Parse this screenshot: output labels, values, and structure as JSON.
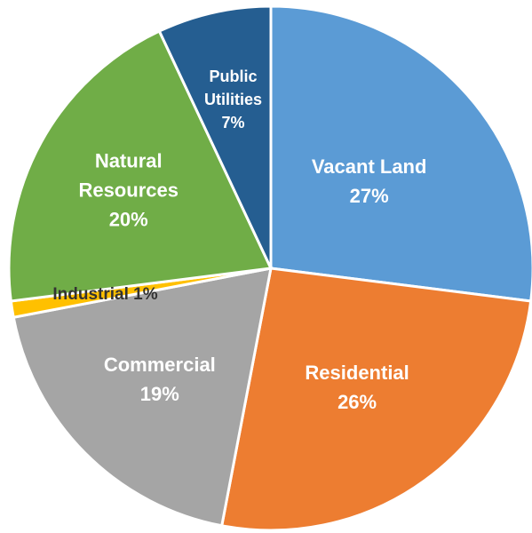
{
  "chart_data": {
    "type": "pie",
    "categories": [
      "Vacant Land",
      "Residential",
      "Commercial",
      "Industrial",
      "Natural Resources",
      "Public Utilities"
    ],
    "values": [
      27,
      26,
      19,
      1,
      20,
      7
    ],
    "value_labels": [
      "27%",
      "26%",
      "19%",
      "1%",
      "20%",
      "7%"
    ],
    "colors": [
      "#5b9bd5",
      "#ed7d31",
      "#a5a5a5",
      "#ffc000",
      "#70ad47",
      "#255e91"
    ]
  }
}
